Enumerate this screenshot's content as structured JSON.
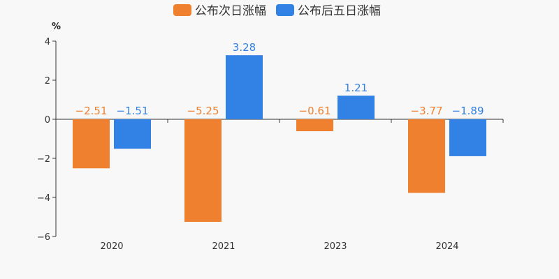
{
  "chart_data": {
    "type": "bar",
    "categories": [
      "2020",
      "2021",
      "2023",
      "2024"
    ],
    "series": [
      {
        "name": "公布次日涨幅",
        "values": [
          -2.51,
          -5.25,
          -0.61,
          -3.77
        ],
        "labels": [
          "−2.51",
          "−5.25",
          "−0.61",
          "−3.77"
        ],
        "color": "#ef8030"
      },
      {
        "name": "公布后五日涨幅",
        "values": [
          -1.51,
          3.28,
          1.21,
          -1.89
        ],
        "labels": [
          "−1.51",
          "3.28",
          "1.21",
          "−1.89"
        ],
        "color": "#3281e4"
      }
    ],
    "ylabel": "%",
    "ylim": [
      -6,
      4
    ],
    "yticks": [
      4,
      2,
      0,
      -2,
      -4,
      -6
    ],
    "ytick_labels": [
      "4",
      "2",
      "0",
      "−2",
      "−4",
      "−6"
    ],
    "legend_position": "top-center",
    "grid": false
  }
}
